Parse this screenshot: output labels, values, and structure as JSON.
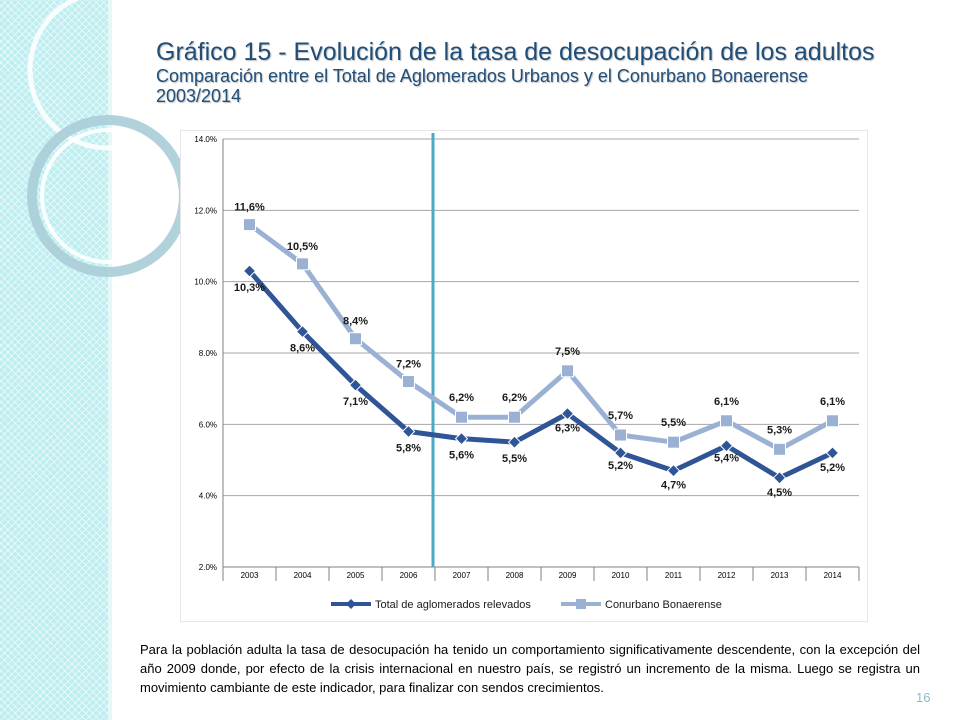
{
  "slide": {
    "title": "Gráfico 15 - Evolución de la tasa de desocupación de los adultos",
    "subtitle": "Comparación entre el Total de Aglomerados Urbanos y el Conurbano Bonaerense",
    "years": "2003/2014",
    "body": "Para la población adulta la tasa de desocupación ha tenido un comportamiento significativamente descendente, con la excepción del año 2009 donde, por efecto de la crisis internacional en nuestro país, se registró un incremento de la misma.  Luego se registra un movimiento cambiante de este indicador, para finalizar con sendos crecimientos.",
    "page_number": "16"
  },
  "colors": {
    "series_total": "#2f5597",
    "series_conurbano": "#9bb1d4",
    "divider": "#4aaac6",
    "grid": "#a6a6a6"
  },
  "chart_data": {
    "type": "line",
    "x": [
      "2003",
      "2004",
      "2005",
      "2006",
      "2007",
      "2008",
      "2009",
      "2010",
      "2011",
      "2012",
      "2013",
      "2014"
    ],
    "ylim": [
      2.0,
      14.0
    ],
    "yticks": [
      "2.0%",
      "4.0%",
      "6.0%",
      "8.0%",
      "10.0%",
      "12.0%",
      "14.0%"
    ],
    "grid": true,
    "legend_position": "bottom",
    "vertical_marker_between": [
      "2006",
      "2007"
    ],
    "series": [
      {
        "name": "Total de aglomerados relevados",
        "values": [
          10.3,
          8.6,
          7.1,
          5.8,
          5.6,
          5.5,
          6.3,
          5.2,
          4.7,
          5.4,
          4.5,
          5.2
        ],
        "labels": [
          "10,3%",
          "8,6%",
          "7,1%",
          "5,8%",
          "5,6%",
          "5,5%",
          "6,3%",
          "5,2%",
          "4,7%",
          "5,4%",
          "4,5%",
          "5,2%"
        ],
        "marker": "diamond"
      },
      {
        "name": "Conurbano Bonaerense",
        "values": [
          11.6,
          10.5,
          8.4,
          7.2,
          6.2,
          6.2,
          7.5,
          5.7,
          5.5,
          6.1,
          5.3,
          6.1
        ],
        "labels": [
          "11,6%",
          "10,5%",
          "8,4%",
          "7,2%",
          "6,2%",
          "6,2%",
          "7,5%",
          "5,7%",
          "5,5%",
          "6,1%",
          "5,3%",
          "6,1%"
        ],
        "marker": "square"
      }
    ]
  }
}
